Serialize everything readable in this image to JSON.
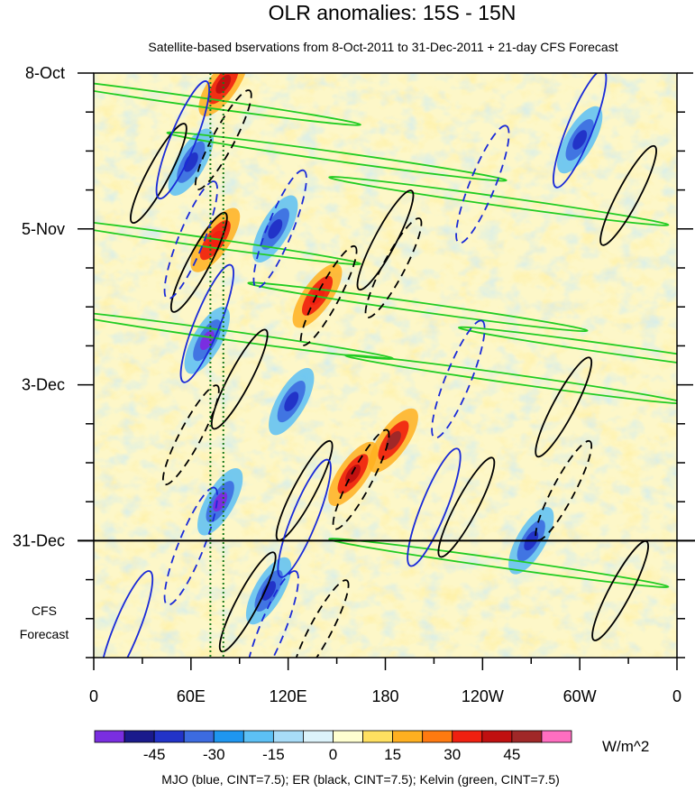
{
  "chart_data": {
    "type": "heatmap",
    "title": "OLR anomalies: 15S - 15N",
    "subtitle": "Satellite-based bservations from 8-Oct-2011 to 31-Dec-2011 + 21-day CFS Forecast",
    "x_tick_labels": [
      "0",
      "60E",
      "120E",
      "180",
      "120W",
      "60W",
      "0"
    ],
    "x_tick_lons": [
      0,
      60,
      120,
      180,
      240,
      300,
      360
    ],
    "xlim": [
      0,
      360
    ],
    "y_tick_labels": [
      "8-Oct",
      "5-Nov",
      "3-Dec",
      "31-Dec"
    ],
    "y_tick_days": [
      0,
      28,
      56,
      84
    ],
    "ylim_days": [
      0,
      105
    ],
    "forecast_start_day": 84,
    "forecast_label": [
      "CFS",
      "Forecast"
    ],
    "reference_lons": [
      72,
      80
    ],
    "colorbar": {
      "units": "W/m^2",
      "tick_labels": [
        "-45",
        "-30",
        "-15",
        "0",
        "15",
        "30",
        "45"
      ],
      "tick_values": [
        -45,
        -30,
        -15,
        0,
        15,
        30,
        45
      ],
      "levels": [
        -60,
        -52.5,
        -45,
        -37.5,
        -30,
        -22.5,
        -15,
        -7.5,
        0,
        7.5,
        15,
        22.5,
        30,
        37.5,
        45,
        52.5,
        60
      ],
      "colors": [
        "#7a2ee0",
        "#1a1a8c",
        "#2233c8",
        "#3c6be0",
        "#1e96f0",
        "#5cc0f5",
        "#a8dcf8",
        "#dcf3fb",
        "#ffffd0",
        "#ffe060",
        "#ffb020",
        "#ff7a10",
        "#f02010",
        "#c01010",
        "#a02828",
        "#ff6ec0"
      ]
    },
    "features": [
      {
        "type": "negative-anomaly",
        "lon": 60,
        "day": 16,
        "value": -45
      },
      {
        "type": "negative-anomaly",
        "lon": 112,
        "day": 28,
        "value": -45
      },
      {
        "type": "negative-anomaly",
        "lon": 70,
        "day": 48,
        "value": -55
      },
      {
        "type": "negative-anomaly",
        "lon": 78,
        "day": 77,
        "value": -55
      },
      {
        "type": "negative-anomaly",
        "lon": 122,
        "day": 59,
        "value": -45
      },
      {
        "type": "negative-anomaly",
        "lon": 108,
        "day": 93,
        "value": -45
      },
      {
        "type": "negative-anomaly",
        "lon": 270,
        "day": 84,
        "value": -45
      },
      {
        "type": "negative-anomaly",
        "lon": 300,
        "day": 12,
        "value": -40
      },
      {
        "type": "positive-anomaly",
        "lon": 80,
        "day": 2,
        "value": 40
      },
      {
        "type": "positive-anomaly",
        "lon": 160,
        "day": 72,
        "value": 40
      },
      {
        "type": "positive-anomaly",
        "lon": 185,
        "day": 66,
        "value": 45
      },
      {
        "type": "positive-anomaly",
        "lon": 75,
        "day": 30,
        "value": 35
      },
      {
        "type": "positive-anomaly",
        "lon": 138,
        "day": 40,
        "value": 30
      }
    ],
    "legend_text": "MJO (blue, CINT=7.5); ER (black, CINT=7.5); Kelvin (green, CINT=7.5)"
  }
}
